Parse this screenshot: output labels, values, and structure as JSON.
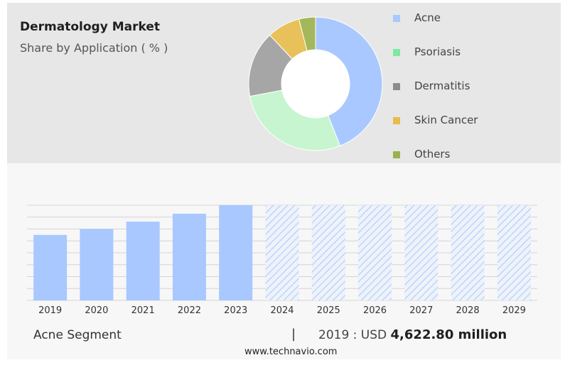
{
  "header": {
    "title": "Dermatology Market",
    "subtitle": "Share by Application ( % )"
  },
  "legend": [
    {
      "label": "Acne",
      "color": "#a8c8ff"
    },
    {
      "label": "Psoriasis",
      "color": "#7ee8a0"
    },
    {
      "label": "Dermatitis",
      "color": "#8c8c8c"
    },
    {
      "label": "Skin Cancer",
      "color": "#e8bb4a"
    },
    {
      "label": "Others",
      "color": "#99b24c"
    }
  ],
  "footer": {
    "segment": "Acne Segment",
    "separator": "|",
    "year_label": "2019 : USD",
    "amount": "4,622.80 million",
    "site": "www.technavio.com"
  },
  "chart_data": [
    {
      "type": "pie",
      "title": "Share by Application ( % )",
      "categories": [
        "Acne",
        "Psoriasis",
        "Dermatitis",
        "Skin Cancer",
        "Others"
      ],
      "values": [
        44,
        28,
        16,
        8,
        4
      ],
      "colors": [
        "#a8c8ff",
        "#c6f5cf",
        "#a6a6a6",
        "#e8c15a",
        "#a3b85a"
      ],
      "donut": true
    },
    {
      "type": "bar",
      "title": "Acne Segment",
      "categories": [
        "2019",
        "2020",
        "2021",
        "2022",
        "2023",
        "2024",
        "2025",
        "2026",
        "2027",
        "2028",
        "2029"
      ],
      "values": [
        4622.8,
        5040,
        5560,
        6120,
        6720,
        6720,
        6720,
        6720,
        6720,
        6720,
        6720
      ],
      "forecast_from": "2024",
      "ylim": [
        0,
        6720
      ],
      "grid": true,
      "color": "#a8c8ff"
    }
  ]
}
